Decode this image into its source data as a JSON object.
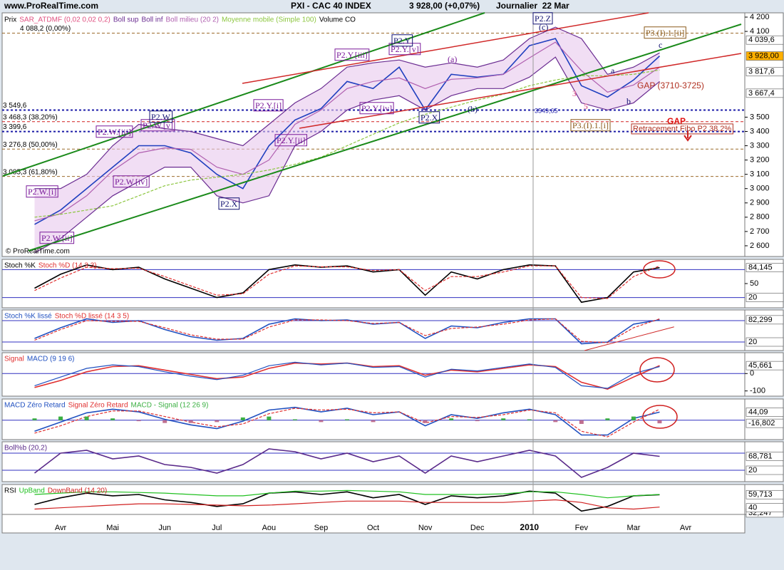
{
  "brand": "www.ProRealTime.com",
  "copyright": "© ProRealTime.com",
  "annotations": [
    "P2.W.[i]",
    "P2.W.[ii]",
    "P2.W.[iii]",
    "P2.W.[iv]",
    "P2.W.[v]",
    "P2.W",
    "P2.X",
    "P2.Y.[i]",
    "P2.Y.[ii]",
    "P2.Y.[iii]",
    "P2.Y.[iv]",
    "P2.Y.[v]",
    "P2.Y",
    "P2.X",
    "(a)",
    "(b)",
    "(c)",
    "P2.Z",
    "P3.(I).1.[i]",
    "P3.(I).1.[ii]",
    "a",
    "b",
    "c",
    "3",
    "5",
    "GAP (3710-3725)",
    "GAP",
    "Retracement Fibo P2 38,2%",
    "3549,65"
  ],
  "chart_data": [
    {
      "type": "line",
      "title": "PXI - CAC 40 INDEX",
      "subtitle": "3 928,00 (+0,07%)",
      "period": "Journalier  22 Mar",
      "categories": [
        null,
        "Avr",
        null,
        "Mai",
        null,
        "Jun",
        null,
        "Jul",
        null,
        "Aou",
        null,
        "Sep",
        null,
        "Oct",
        null,
        "Nov",
        null,
        "Dec",
        null,
        "2010",
        null,
        "Fev",
        null,
        "Mar",
        null,
        "Avr"
      ],
      "indicators": [
        "SAR_ATDMF (0,02 0,02 0,2)",
        "Volume CO"
      ],
      "series": [
        {
          "name": "Prix",
          "color": "#1f3fbf",
          "values": [
            2750,
            2850,
            3000,
            3150,
            3300,
            3300,
            3250,
            3100,
            3000,
            3300,
            3480,
            3560,
            3750,
            3700,
            3850,
            3550,
            3800,
            3780,
            3800,
            4000,
            4050,
            3720,
            3640,
            3760,
            3928,
            null
          ]
        },
        {
          "name": "Boll sup",
          "color": "#6a2c91",
          "values": [
            3000,
            3000,
            3100,
            3300,
            3450,
            3420,
            3400,
            3350,
            3300,
            3450,
            3600,
            3700,
            3850,
            3880,
            3900,
            3850,
            3880,
            3850,
            3900,
            4050,
            4130,
            4050,
            3800,
            3850,
            3950,
            null
          ]
        },
        {
          "name": "Boll inf",
          "color": "#6a2c91",
          "values": [
            2550,
            2650,
            2800,
            2950,
            3050,
            3150,
            3150,
            2950,
            2900,
            2950,
            3300,
            3400,
            3550,
            3620,
            3650,
            3550,
            3650,
            3700,
            3700,
            3780,
            3920,
            3600,
            3550,
            3600,
            3750,
            null
          ]
        },
        {
          "name": "Boll milieu (20 2)",
          "color": "#b060b0",
          "values": [
            2775,
            2825,
            2950,
            3125,
            3250,
            3285,
            3275,
            3150,
            3100,
            3200,
            3450,
            3550,
            3700,
            3750,
            3775,
            3700,
            3765,
            3775,
            3800,
            3915,
            4025,
            3825,
            3675,
            3725,
            3850,
            null
          ]
        },
        {
          "name": "Moyenne mobile (Simple 100)",
          "color": "#8cc63f",
          "values": [
            2800,
            2820,
            2850,
            2880,
            2950,
            3020,
            3060,
            3080,
            3100,
            3130,
            3170,
            3220,
            3300,
            3380,
            3460,
            3520,
            3570,
            3620,
            3660,
            3720,
            3760,
            3790,
            3790,
            3800,
            3830,
            null
          ]
        }
      ],
      "ylim": [
        2525,
        4230
      ],
      "yticks": [
        {
          "value": 4200,
          "label": "4 200"
        },
        {
          "value": 4100,
          "label": "4 100"
        },
        {
          "value": 3500,
          "label": "3 500"
        },
        {
          "value": 3400,
          "label": "3 400"
        },
        {
          "value": 3300,
          "label": "3 300"
        },
        {
          "value": 3200,
          "label": "3 200"
        },
        {
          "value": 3100,
          "label": "3 100"
        },
        {
          "value": 3000,
          "label": "3 000"
        },
        {
          "value": 2900,
          "label": "2 900"
        },
        {
          "value": 2800,
          "label": "2 800"
        },
        {
          "value": 2700,
          "label": "2 700"
        },
        {
          "value": 2600,
          "label": "2 600"
        }
      ],
      "levels": [
        {
          "value": 4088.2,
          "label": "4 088,2 (0,00%)",
          "color": "#9c6b2c"
        },
        {
          "value": 3549.6,
          "label": "3 549,6",
          "color": "#1c1ca8"
        },
        {
          "value": 3468.3,
          "label": "3 468,3 (38,20%)",
          "color": "#d02020"
        },
        {
          "value": 3399.6,
          "label": "3 399,6",
          "color": "#1c1ca8"
        },
        {
          "value": 3276.8,
          "label": "3 276,8 (50,00%)",
          "color": "#9c6b2c"
        },
        {
          "value": 3085.3,
          "label": "3 085,3 (61,80%)",
          "color": "#9c6b2c"
        }
      ],
      "markers": [
        {
          "value": 4039.6,
          "label": "4 039,6",
          "color": "#ffffff"
        },
        {
          "value": 3928,
          "label": "3 928,00",
          "color": "#ffb000"
        },
        {
          "value": 3817.6,
          "label": "3 817,6",
          "color": "#ffffff"
        },
        {
          "value": 3667.4,
          "label": "3 667,4",
          "color": "#ffffff"
        }
      ]
    },
    {
      "type": "line",
      "series": [
        {
          "name": "Stoch %K",
          "color": "#000000",
          "values": [
            40,
            70,
            90,
            80,
            85,
            60,
            40,
            20,
            30,
            80,
            90,
            85,
            88,
            75,
            80,
            25,
            75,
            60,
            80,
            90,
            88,
            10,
            20,
            75,
            84.145,
            null
          ]
        },
        {
          "name": "Stoch %D (14 3 3)",
          "color": "#e03030",
          "values": [
            35,
            62,
            85,
            82,
            83,
            65,
            45,
            25,
            28,
            70,
            88,
            86,
            86,
            78,
            80,
            35,
            65,
            65,
            75,
            88,
            88,
            20,
            18,
            65,
            88,
            null
          ]
        }
      ],
      "ylim": [
        -2,
        102
      ],
      "yticks": [
        50
      ],
      "hlines": [
        80,
        20
      ],
      "markers": [
        {
          "value": 84.145,
          "label": "84,145",
          "color": "#ffffff"
        },
        {
          "value": 20,
          "label": "20",
          "color": "#ffffff"
        }
      ]
    },
    {
      "type": "line",
      "series": [
        {
          "name": "Stoch %K lissé",
          "color": "#2050c0",
          "values": [
            30,
            60,
            85,
            75,
            80,
            55,
            35,
            25,
            30,
            70,
            85,
            80,
            82,
            70,
            75,
            30,
            65,
            60,
            75,
            85,
            85,
            15,
            20,
            70,
            82.299,
            null
          ]
        },
        {
          "name": "Stoch %D lissé (14 3 5)",
          "color": "#e03030",
          "values": [
            25,
            55,
            80,
            78,
            78,
            60,
            40,
            28,
            28,
            62,
            82,
            82,
            80,
            72,
            75,
            38,
            58,
            62,
            70,
            82,
            85,
            22,
            18,
            60,
            85,
            null
          ]
        }
      ],
      "ylim": [
        -4,
        110
      ],
      "hlines": [
        80,
        20
      ],
      "markers": [
        {
          "value": 82.299,
          "label": "82,299",
          "color": "#ffffff"
        },
        {
          "value": 20,
          "label": "20",
          "color": "#ffffff"
        }
      ]
    },
    {
      "type": "line",
      "series": [
        {
          "name": "Signal",
          "color": "#e03030",
          "values": [
            -80,
            -40,
            10,
            40,
            45,
            20,
            -5,
            -30,
            -20,
            30,
            60,
            55,
            60,
            40,
            45,
            -10,
            20,
            10,
            30,
            50,
            40,
            -50,
            -90,
            -20,
            45.661,
            null
          ]
        },
        {
          "name": "MACD (9 19 6)",
          "color": "#2050c0",
          "values": [
            -70,
            -20,
            30,
            50,
            40,
            10,
            -15,
            -35,
            -10,
            45,
            65,
            50,
            60,
            35,
            40,
            -20,
            25,
            15,
            35,
            55,
            35,
            -70,
            -85,
            0,
            40,
            null
          ]
        }
      ],
      "ylim": [
        -130,
        120
      ],
      "yticks": [
        0,
        -100
      ],
      "hlines": [
        0
      ],
      "markers": [
        {
          "value": 45.661,
          "label": "45,661",
          "color": "#ffffff"
        }
      ]
    },
    {
      "type": "line",
      "series": [
        {
          "name": "MACD Zéro Retard",
          "color": "#2050c0",
          "values": [
            -60,
            -10,
            40,
            60,
            45,
            5,
            -25,
            -45,
            -5,
            55,
            70,
            45,
            65,
            30,
            45,
            -30,
            30,
            10,
            40,
            60,
            30,
            -80,
            -80,
            10,
            44.09,
            null
          ]
        },
        {
          "name": "Signal Zéro Retard",
          "color": "#e03030",
          "values": [
            -70,
            -30,
            20,
            50,
            50,
            20,
            -10,
            -35,
            -20,
            35,
            65,
            55,
            60,
            40,
            45,
            -15,
            20,
            15,
            30,
            55,
            40,
            -60,
            -90,
            -10,
            60,
            null
          ]
        },
        {
          "name": "MACD - Signal (12 26 9)",
          "color": "#3cb043",
          "kind": "bar",
          "values": [
            10,
            20,
            20,
            10,
            -5,
            -15,
            -15,
            -10,
            15,
            20,
            5,
            -10,
            5,
            -10,
            0,
            -15,
            10,
            -5,
            10,
            5,
            -10,
            -20,
            10,
            20,
            -16.802,
            null
          ]
        }
      ],
      "ylim": [
        -105,
        115
      ],
      "hlines": [
        0
      ],
      "markers": [
        {
          "value": 44.09,
          "label": "44,09",
          "color": "#ffffff"
        },
        {
          "value": -16.802,
          "label": "-16,802",
          "color": "#ffffff"
        }
      ]
    },
    {
      "type": "line",
      "series": [
        {
          "name": "Boll%b (20,2)",
          "color": "#5a2a8a",
          "values": [
            10,
            80,
            90,
            60,
            70,
            40,
            30,
            10,
            40,
            95,
            85,
            60,
            80,
            50,
            70,
            10,
            70,
            50,
            70,
            90,
            70,
            -5,
            30,
            80,
            68.781,
            null
          ]
        }
      ],
      "ylim": [
        -20,
        120
      ],
      "hlines": [
        80,
        20
      ],
      "markers": [
        {
          "value": 68.781,
          "label": "68,781",
          "color": "#ffffff"
        },
        {
          "value": 20,
          "label": "20",
          "color": "#ffffff"
        }
      ]
    },
    {
      "type": "line",
      "series": [
        {
          "name": "RSI",
          "color": "#000000",
          "values": [
            45,
            55,
            62,
            58,
            60,
            52,
            48,
            42,
            46,
            62,
            64,
            60,
            64,
            55,
            60,
            45,
            58,
            55,
            58,
            65,
            62,
            35,
            42,
            58,
            59.713,
            null
          ]
        },
        {
          "name": "UpBand",
          "color": "#20c020",
          "values": [
            60,
            62,
            64,
            64,
            63,
            62,
            60,
            58,
            58,
            62,
            65,
            65,
            66,
            65,
            64,
            60,
            60,
            60,
            61,
            64,
            64,
            60,
            55,
            58,
            60,
            null
          ]
        },
        {
          "name": "DownBand (14 20)",
          "color": "#d02020",
          "values": [
            38,
            40,
            42,
            44,
            46,
            46,
            45,
            44,
            43,
            44,
            46,
            48,
            50,
            50,
            50,
            48,
            48,
            48,
            48,
            50,
            52,
            48,
            40,
            38,
            41,
            null
          ]
        }
      ],
      "ylim": [
        30,
        75
      ],
      "markers": [
        {
          "value": 59.713,
          "label": "59,713",
          "color": "#ffffff"
        },
        {
          "value": 32.247,
          "label": "32,247",
          "color": "#ffffff"
        },
        {
          "value": 40,
          "label": "40",
          "color": "#ffffff"
        }
      ]
    }
  ]
}
